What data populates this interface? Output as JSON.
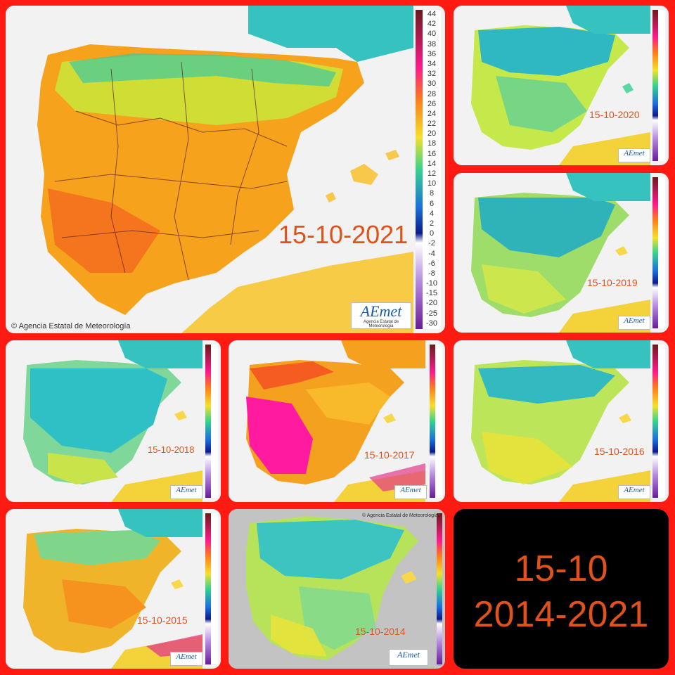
{
  "colors": {
    "frame": "#ff1a12",
    "label": "#e0521a",
    "land_2021": "#f7a21c",
    "land_cool": "#33c7c0",
    "land_mild": "#b5e35a",
    "land_hot": "#f45a22",
    "land_extreme": "#ff1aa0",
    "africa": "#f6cf3a",
    "sea": "#f2f2f2",
    "gray_sea": "#bdbdbd"
  },
  "scale_labels": [
    "44",
    "42",
    "40",
    "38",
    "36",
    "34",
    "32",
    "30",
    "28",
    "26",
    "24",
    "22",
    "20",
    "18",
    "16",
    "14",
    "12",
    "10",
    "8",
    "6",
    "4",
    "2",
    "0",
    "-2",
    "-4",
    "-6",
    "-8",
    "-10",
    "-15",
    "-20",
    "-25",
    "-30"
  ],
  "copyright": "Agencia Estatal de Meteorología",
  "logo": {
    "brand": "AEmet",
    "sub": "Agencia Estatal de Meteorología"
  },
  "maps": [
    {
      "date": "15-10-2021",
      "palette": "hot"
    },
    {
      "date": "15-10-2020",
      "palette": "cool"
    },
    {
      "date": "15-10-2019",
      "palette": "cool"
    },
    {
      "date": "15-10-2018",
      "palette": "cool"
    },
    {
      "date": "15-10-2017",
      "palette": "extreme"
    },
    {
      "date": "15-10-2016",
      "palette": "mild"
    },
    {
      "date": "15-10-2015",
      "palette": "warm"
    },
    {
      "date": "15-10-2014",
      "palette": "gray"
    }
  ],
  "summary": {
    "line1": "15-10",
    "line2": "2014-2021"
  }
}
